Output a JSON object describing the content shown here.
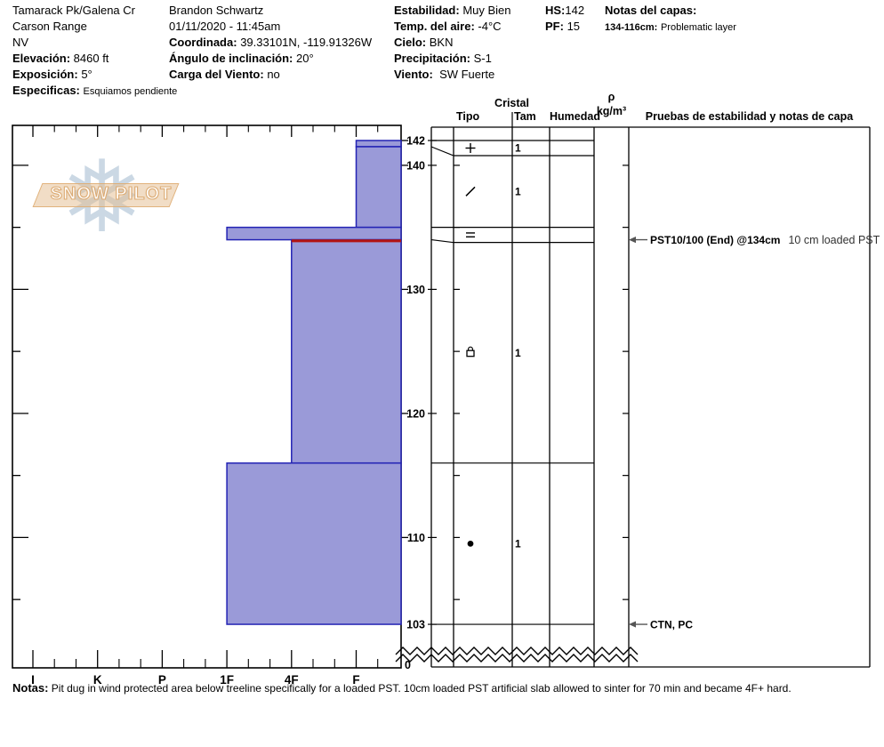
{
  "header": {
    "location": {
      "site": "Tamarack Pk/Galena Cr",
      "range": "Carson Range",
      "state": "NV",
      "elevation_label": "Elevación:",
      "elevation": "8460 ft",
      "aspect_label": "Exposición:",
      "aspect": "5°",
      "specifics_label": "Especificas:",
      "specifics": "Esquiamos pendiente"
    },
    "observer": {
      "name": "Brandon Schwartz",
      "datetime": "01/11/2020 - 11:45am",
      "coord_label": "Coordinada:",
      "coord": "39.33101N, -119.91326W",
      "slope_label": "Ángulo de inclinación:",
      "slope": "20°",
      "windload_label": "Carga del Viento:",
      "windload": "no"
    },
    "conditions": {
      "stability_label": "Estabilidad:",
      "stability": "Muy Bien",
      "airtemp_label": "Temp. del aire:",
      "airtemp": "-4°C",
      "sky_label": "Cielo:",
      "sky": "BKN",
      "precip_label": "Precipitación:",
      "precip": "S-1",
      "wind_label": "Viento:",
      "wind": "SW Fuerte"
    },
    "totals": {
      "hs_label": "HS:",
      "hs": "142",
      "pf_label": "PF:",
      "pf": "15"
    },
    "layer_notes": {
      "title": "Notas del capas:",
      "range_label": "134-116cm:",
      "note": "Problematic layer"
    }
  },
  "logo": {
    "text": "SNOW PILOT",
    "snowflake_glyph": "❅"
  },
  "chart_data": {
    "type": "snow-profile",
    "hardness_labels": [
      "I",
      "K",
      "P",
      "1F",
      "4F",
      "F"
    ],
    "depth_unit": "cm",
    "depth_labels": [
      "142",
      "140",
      "130",
      "120",
      "110",
      "103",
      "0"
    ],
    "hs_cm": 142,
    "pit_bottom_cm": 103,
    "columns": {
      "cristal": "Cristal",
      "tipo": "Tipo",
      "tam": "Tam",
      "humedad": "Humedad",
      "rho": "ρ",
      "rho_unit": "kg/m³",
      "tests": "Pruebas de estabilidad y notas de capa"
    },
    "layers": [
      {
        "top_cm": 142,
        "bottom_cm": 141.5,
        "hardness": "F",
        "grain_symbol": "plus",
        "grain": "precipitation particles (+)",
        "size_mm": "1",
        "moisture": "",
        "density": ""
      },
      {
        "top_cm": 141.5,
        "bottom_cm": 135,
        "hardness": "F",
        "grain_symbol": "slash",
        "grain": "decomposing fragments (/)",
        "size_mm": "1",
        "moisture": "",
        "density": ""
      },
      {
        "top_cm": 135,
        "bottom_cm": 134,
        "hardness": "1F",
        "grain_symbol": "equals",
        "grain": "plates (=)",
        "size_mm": "",
        "moisture": "",
        "density": ""
      },
      {
        "top_cm": 134,
        "bottom_cm": 116,
        "hardness": "4F",
        "grain_symbol": "square-cap",
        "grain": "rounding faceted",
        "size_mm": "1",
        "moisture": "",
        "density": "",
        "layer_of_concern": true
      },
      {
        "top_cm": 116,
        "bottom_cm": 103,
        "hardness": "1F",
        "grain_symbol": "dot",
        "grain": "rounded grains (•)",
        "size_mm": "1",
        "moisture": "",
        "density": ""
      }
    ],
    "tests": [
      {
        "depth_cm": 134,
        "result": "PST10/100 (End) @134cm",
        "comment": "10 cm loaded PST"
      },
      {
        "depth_cm": 103,
        "result": "CTN, PC",
        "comment": ""
      }
    ]
  },
  "notes": {
    "label": "Notas:",
    "text": "Pit dug in wind protected area below treeline specifically for a loaded PST. 10cm loaded PST artificial slab allowed to sinter for 70 min and became 4F+ hard."
  },
  "colors": {
    "bar_fill": "#9a9ad8",
    "bar_border": "#2323b4",
    "layer_flag_red": "#b31414",
    "logo_tan": "#e4bc8e",
    "snowflake_blue": "#c2d2e0"
  }
}
